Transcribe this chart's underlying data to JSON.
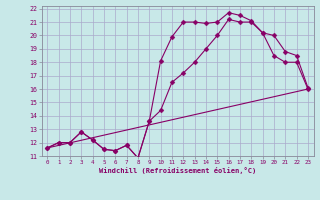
{
  "background_color": "#c8e8e8",
  "grid_color": "#aaaacc",
  "line_color": "#880066",
  "xlabel": "Windchill (Refroidissement éolien,°C)",
  "xlim": [
    -0.5,
    23.5
  ],
  "ylim": [
    11,
    22.2
  ],
  "ytick_labels": [
    "11",
    "12",
    "13",
    "14",
    "15",
    "16",
    "17",
    "18",
    "19",
    "20",
    "21",
    "22"
  ],
  "ytick_values": [
    11,
    12,
    13,
    14,
    15,
    16,
    17,
    18,
    19,
    20,
    21,
    22
  ],
  "xtick_values": [
    0,
    1,
    2,
    3,
    4,
    5,
    6,
    7,
    8,
    9,
    10,
    11,
    12,
    13,
    14,
    15,
    16,
    17,
    18,
    19,
    20,
    21,
    22,
    23
  ],
  "series1_x": [
    0,
    1,
    2,
    3,
    4,
    5,
    6,
    7,
    8,
    9,
    10,
    11,
    12,
    13,
    14,
    15,
    16,
    17,
    18,
    19,
    20,
    21,
    22,
    23
  ],
  "series1_y": [
    11.6,
    12.0,
    12.0,
    12.8,
    12.2,
    11.5,
    11.4,
    11.8,
    10.85,
    13.6,
    18.1,
    19.9,
    21.0,
    21.0,
    20.9,
    21.0,
    21.7,
    21.5,
    21.1,
    20.2,
    18.5,
    18.0,
    18.0,
    16.0
  ],
  "series2_x": [
    0,
    1,
    2,
    3,
    4,
    5,
    6,
    7,
    8,
    9,
    10,
    11,
    12,
    13,
    14,
    15,
    16,
    17,
    18,
    19,
    20,
    21,
    22,
    23
  ],
  "series2_y": [
    11.6,
    12.0,
    12.0,
    12.8,
    12.2,
    11.5,
    11.4,
    11.8,
    10.85,
    13.6,
    14.4,
    16.5,
    17.2,
    18.0,
    19.0,
    20.0,
    21.2,
    21.0,
    21.0,
    20.2,
    20.0,
    18.8,
    18.5,
    16.1
  ],
  "series3_x": [
    0,
    23
  ],
  "series3_y": [
    11.6,
    16.0
  ],
  "series4_x": [
    0,
    23
  ],
  "series4_y": [
    11.6,
    16.0
  ]
}
